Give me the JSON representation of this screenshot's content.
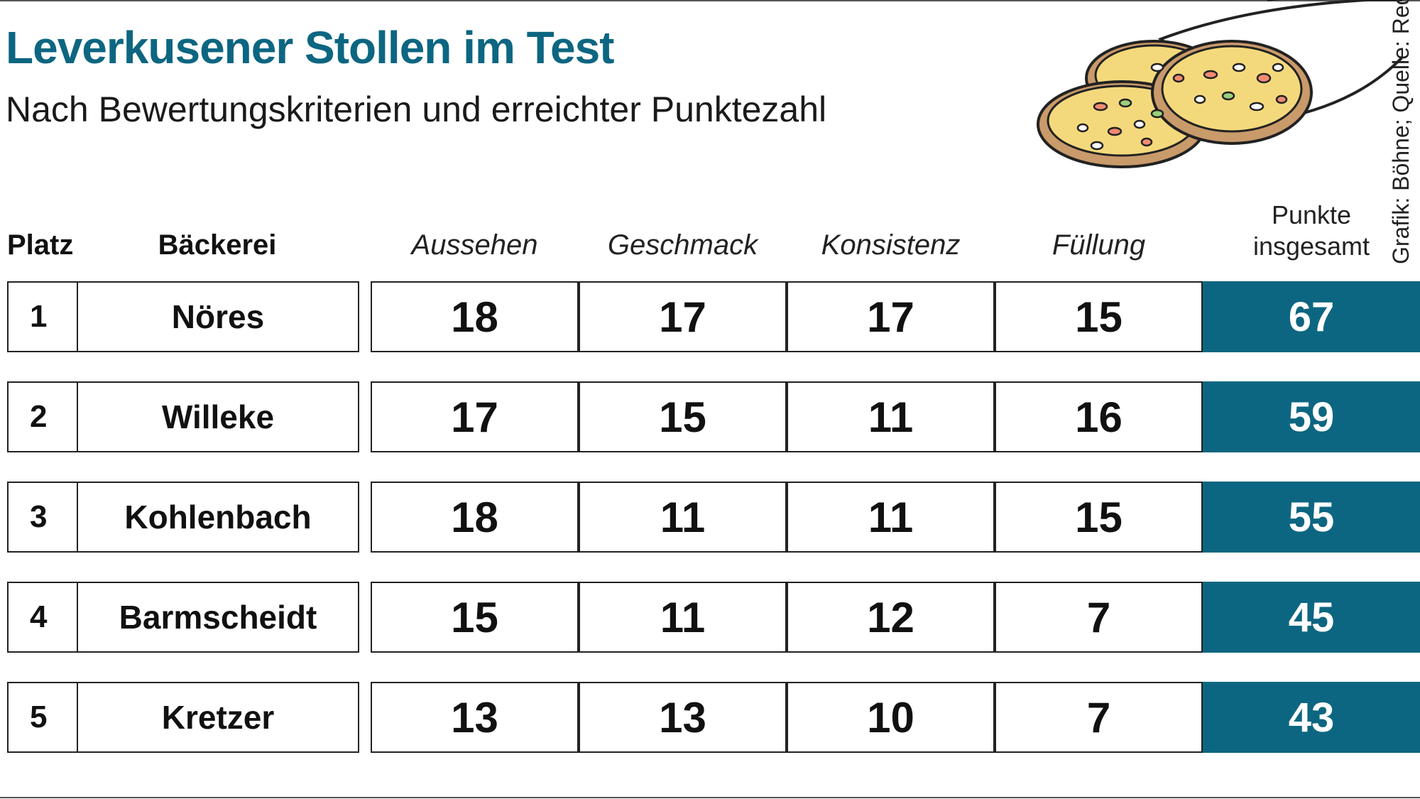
{
  "title": "Leverkusener Stollen im Test",
  "subtitle": "Nach Bewertungskriterien und erreichter Punktezahl",
  "credit": "Grafik: Böhne; Quelle: Redaktion",
  "colors": {
    "accent": "#0d6681",
    "illustration_fill": "#f4d97c",
    "illustration_crust": "#c99a6a"
  },
  "illustration": "stollen-slices-icon",
  "chart_data": {
    "type": "table",
    "columns": {
      "rank": "Platz",
      "bakery": "Bäckerei",
      "criteria": [
        "Aussehen",
        "Geschmack",
        "Konsistenz",
        "Füllung"
      ],
      "total_line1": "Punkte",
      "total_line2": "insgesamt"
    },
    "rows": [
      {
        "rank": "1",
        "bakery": "Nöres",
        "scores": [
          18,
          17,
          17,
          15
        ],
        "total": 67
      },
      {
        "rank": "2",
        "bakery": "Willeke",
        "scores": [
          17,
          15,
          11,
          16
        ],
        "total": 59
      },
      {
        "rank": "3",
        "bakery": "Kohlenbach",
        "scores": [
          18,
          11,
          11,
          15
        ],
        "total": 55
      },
      {
        "rank": "4",
        "bakery": "Barmscheidt",
        "scores": [
          15,
          11,
          12,
          7
        ],
        "total": 45
      },
      {
        "rank": "5",
        "bakery": "Kretzer",
        "scores": [
          13,
          13,
          10,
          7
        ],
        "total": 43
      }
    ]
  }
}
